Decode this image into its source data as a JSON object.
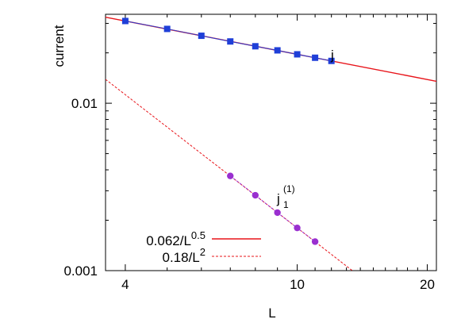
{
  "chart_data": {
    "type": "scatter",
    "xlabel": "L",
    "ylabel": "current",
    "xscale": "log",
    "yscale": "log",
    "xlim": [
      3.6,
      21
    ],
    "ylim": [
      0.001,
      0.034
    ],
    "grid": false,
    "legend_position": "bottom-left",
    "x_ticks": [
      {
        "value": 4,
        "label": "4"
      },
      {
        "value": 10,
        "label": "10"
      },
      {
        "value": 20,
        "label": "20"
      }
    ],
    "y_ticks": [
      {
        "value": 0.01,
        "label": "0.01"
      },
      {
        "value": 0.001,
        "label": "0.001"
      }
    ],
    "series": [
      {
        "name": "j",
        "marker": "square",
        "color": "#1f3fd8",
        "x": [
          4,
          5,
          6,
          7,
          8,
          9,
          10,
          11,
          12
        ],
        "y": [
          0.031,
          0.0278,
          0.0253,
          0.0234,
          0.0219,
          0.0207,
          0.0196,
          0.0187,
          0.0179
        ]
      },
      {
        "name": "j1(1)",
        "marker": "circle",
        "color": "#9a2fd0",
        "x": [
          7,
          8,
          9,
          10,
          11
        ],
        "y": [
          0.00368,
          0.00282,
          0.00222,
          0.0018,
          0.00149
        ]
      }
    ],
    "fits": [
      {
        "coef": 0.062,
        "exp": 0.5,
        "label_base": "0.062/L",
        "label_exp": "0.5",
        "style": "solid",
        "color": "#e8141a"
      },
      {
        "coef": 0.18,
        "exp": 2,
        "label_base": "0.18/L",
        "label_exp": "2",
        "style": "dashed",
        "color": "#e8141a"
      }
    ],
    "annotations": {
      "j": {
        "text": "j"
      },
      "j1": {
        "base": "j",
        "sub": "1",
        "sup": "(1)"
      }
    }
  }
}
